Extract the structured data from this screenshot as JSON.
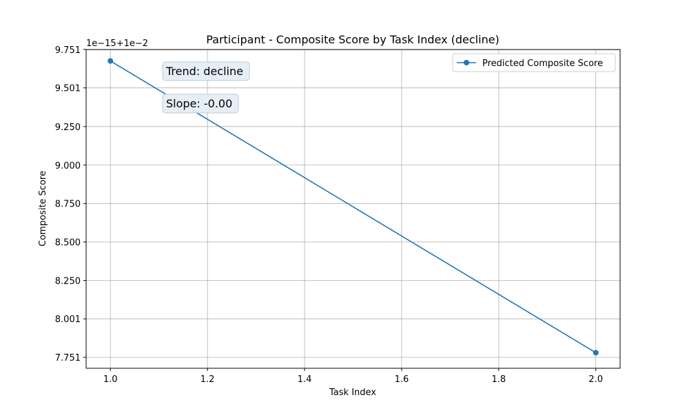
{
  "chart_data": {
    "type": "line",
    "title": "Participant - Composite Score by Task Index (decline)",
    "xlabel": "Task Index",
    "ylabel": "Composite Score",
    "offset_text": "1e−15+1e−2",
    "x": [
      1.0,
      2.0
    ],
    "series": [
      {
        "name": "Predicted Composite Score",
        "values": [
          9.676,
          7.781
        ],
        "color": "#1f77b4"
      }
    ],
    "xlim": [
      0.95,
      2.05
    ],
    "ylim": [
      7.68,
      9.75
    ],
    "xticks": [
      1.0,
      1.2,
      1.4,
      1.6,
      1.8,
      2.0
    ],
    "xtick_labels": [
      "1.0",
      "1.2",
      "1.4",
      "1.6",
      "1.8",
      "2.0"
    ],
    "yticks": [
      7.751,
      8.001,
      8.25,
      8.5,
      8.75,
      9.0,
      9.25,
      9.501,
      9.751
    ],
    "ytick_labels": [
      "7.751",
      "8.001",
      "8.250",
      "8.500",
      "8.750",
      "9.000",
      "9.250",
      "9.501",
      "9.751"
    ],
    "grid": true,
    "legend_position": "top-right",
    "annotations": [
      {
        "text": "Trend: decline"
      },
      {
        "text": "Slope: -0.00"
      }
    ]
  }
}
